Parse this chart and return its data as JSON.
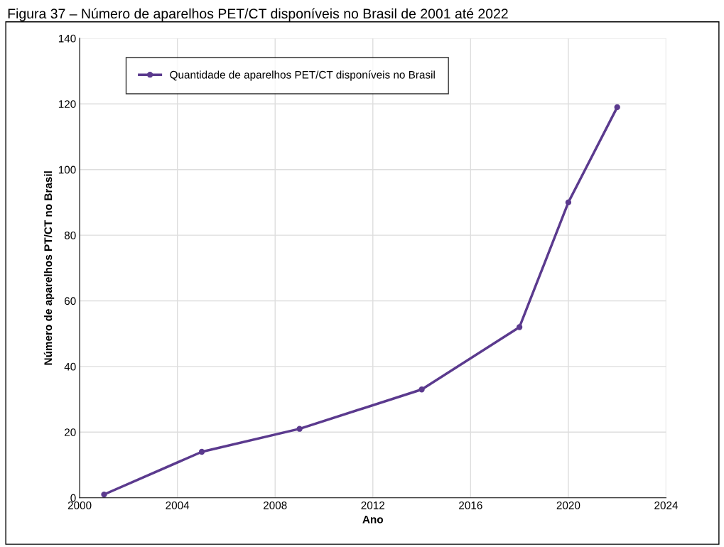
{
  "chart_data": {
    "type": "line",
    "title": "Figura 37 – Número de aparelhos PET/CT disponíveis no Brasil de 2001 até 2022",
    "xlabel": "Ano",
    "ylabel": "Número de aparelhos PT/CT no Brasil",
    "x": [
      2001,
      2005,
      2009,
      2014,
      2018,
      2020,
      2022
    ],
    "series": [
      {
        "name": "Quantidade de aparelhos PET/CT disponíveis no Brasil",
        "color": "#5b3a8e",
        "values": [
          1,
          14,
          21,
          33,
          52,
          90,
          119
        ]
      }
    ],
    "xlim": [
      2000,
      2024
    ],
    "xticks": [
      2000,
      2004,
      2008,
      2012,
      2016,
      2020,
      2024
    ],
    "ylim": [
      0,
      140
    ],
    "yticks": [
      0,
      20,
      40,
      60,
      80,
      100,
      120,
      140
    ],
    "grid": true,
    "legend": "top left",
    "marker": "circle",
    "line_style": "solid"
  }
}
